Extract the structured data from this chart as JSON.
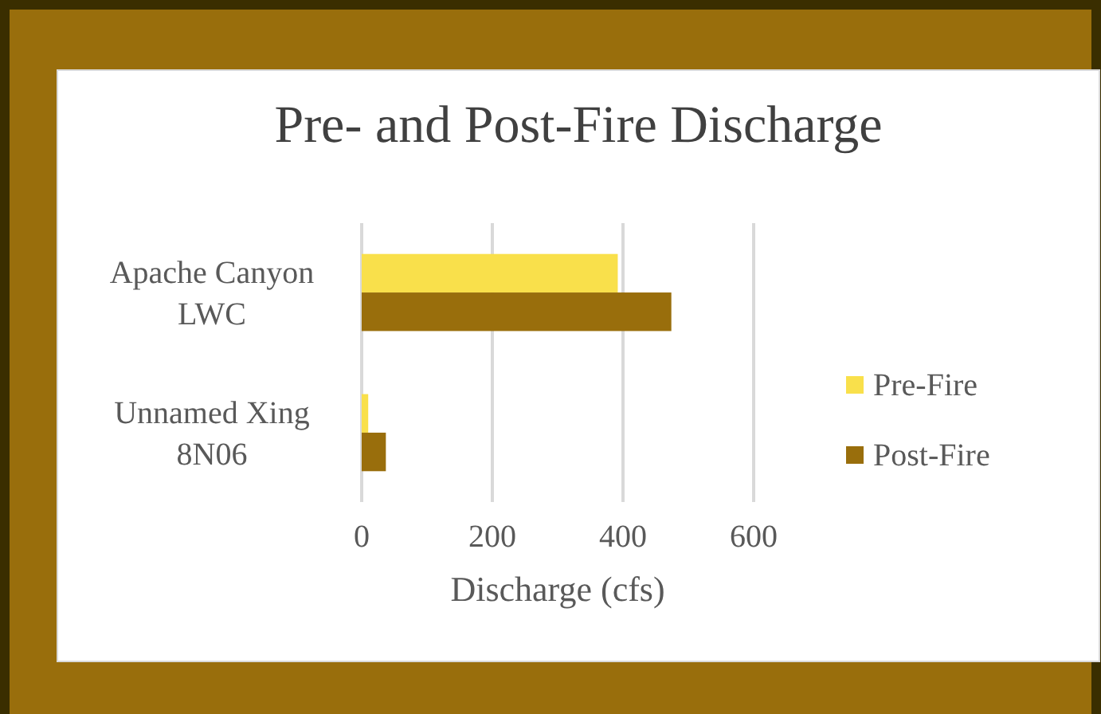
{
  "chart_data": {
    "type": "bar",
    "orientation": "horizontal",
    "title": "Pre- and Post-Fire Discharge",
    "xlabel": "Discharge (cfs)",
    "categories": [
      "Apache Canyon LWC",
      "Unnamed Xing 8N06"
    ],
    "series": [
      {
        "name": "Pre-Fire",
        "color": "#f9e04b",
        "values": [
          392,
          10
        ]
      },
      {
        "name": "Post-Fire",
        "color": "#996e0c",
        "values": [
          474,
          37
        ]
      }
    ],
    "xlim": [
      0,
      600
    ],
    "xticks": [
      0,
      200,
      400,
      600
    ],
    "grid": "x",
    "legend": "right"
  }
}
